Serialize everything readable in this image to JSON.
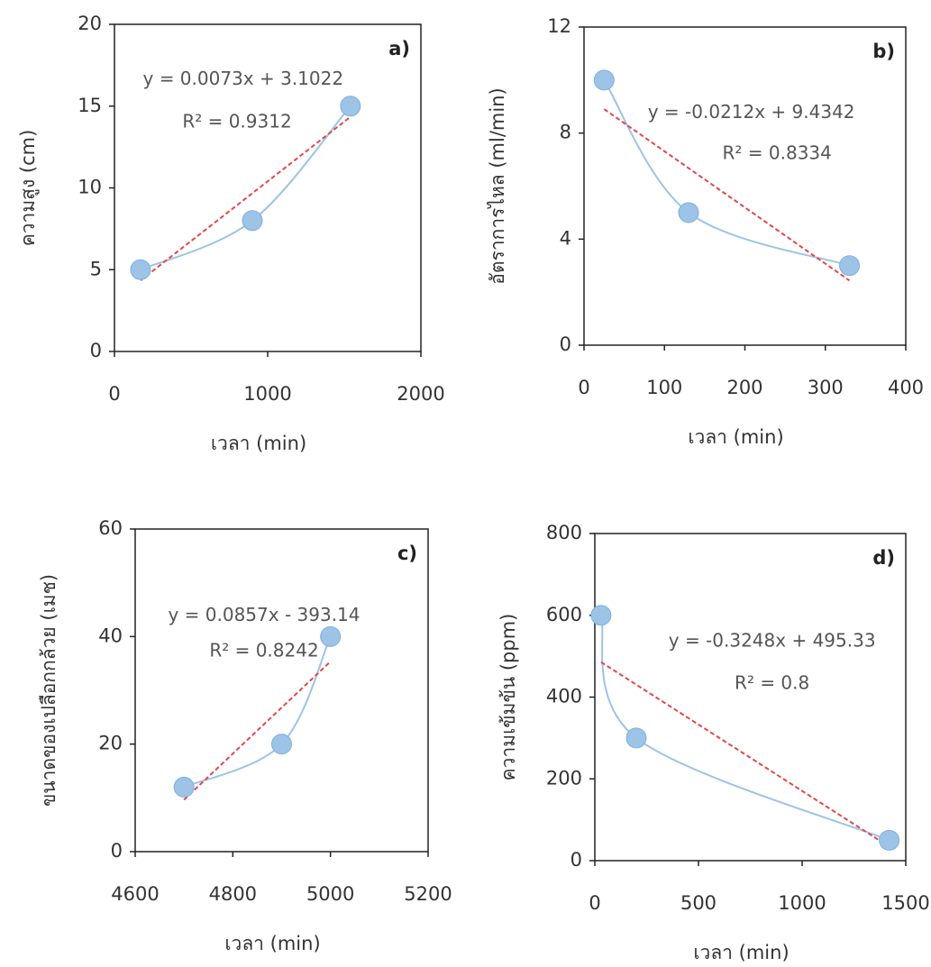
{
  "chart_data": [
    {
      "type": "scatter",
      "panel_label": "a)",
      "x_label": "เวลา (min)",
      "y_label": "ความสูง (cm)",
      "series": [
        {
          "color": "#9dc3e6",
          "x": [
            170,
            900,
            1540
          ],
          "values": [
            5,
            8,
            15
          ]
        }
      ],
      "trendline": {
        "equation": "y = 0.0073x + 3.1022",
        "r2_label": "R² = 0.9312",
        "slope": 0.0073,
        "intercept": 3.1022,
        "color": "#e04848"
      },
      "xlim": [
        0,
        2000
      ],
      "xticks": [
        0,
        1000,
        2000
      ],
      "ylim": [
        0,
        20
      ],
      "yticks": [
        0,
        5,
        10,
        15,
        20
      ]
    },
    {
      "type": "scatter",
      "panel_label": "b)",
      "x_label": "เวลา (min)",
      "y_label": "อัตราการไหล (ml/min)",
      "series": [
        {
          "color": "#9dc3e6",
          "x": [
            25,
            130,
            330
          ],
          "values": [
            10,
            5,
            3
          ]
        }
      ],
      "trendline": {
        "equation": "y = -0.0212x + 9.4342",
        "r2_label": "R² = 0.8334",
        "slope": -0.0212,
        "intercept": 9.4342,
        "color": "#e04848"
      },
      "xlim": [
        0,
        400
      ],
      "xticks": [
        0,
        100,
        200,
        300,
        400
      ],
      "ylim": [
        0,
        12
      ],
      "yticks": [
        0,
        4,
        8,
        12
      ]
    },
    {
      "type": "scatter",
      "panel_label": "c)",
      "x_label": "เวลา (min)",
      "y_label": "ขนาดของเปลือกกล้วย (เมช)",
      "series": [
        {
          "color": "#9dc3e6",
          "x": [
            4700,
            4900,
            5000
          ],
          "values": [
            12,
            20,
            40
          ]
        }
      ],
      "trendline": {
        "equation": "y = 0.0857x - 393.14",
        "r2_label": "R² = 0.8242",
        "slope": 0.0857,
        "intercept": -393.14,
        "color": "#e04848"
      },
      "xlim": [
        4600,
        5200
      ],
      "xticks": [
        4600,
        4800,
        5000,
        5200
      ],
      "ylim": [
        0,
        60
      ],
      "yticks": [
        0,
        20,
        40,
        60
      ]
    },
    {
      "type": "scatter",
      "panel_label": "d)",
      "x_label": "เวลา (min)",
      "y_label": "ความเข้มข้น (ppm)",
      "series": [
        {
          "color": "#9dc3e6",
          "x": [
            30,
            200,
            1420
          ],
          "values": [
            600,
            300,
            50
          ]
        }
      ],
      "trendline": {
        "equation": "y = -0.3248x + 495.33",
        "r2_label": "R² = 0.8",
        "slope": -0.3248,
        "intercept": 495.33,
        "color": "#e04848"
      },
      "xlim": [
        0,
        1500
      ],
      "xticks": [
        0,
        500,
        1000,
        1500
      ],
      "ylim": [
        0,
        800
      ],
      "yticks": [
        0,
        200,
        400,
        600,
        800
      ]
    }
  ]
}
